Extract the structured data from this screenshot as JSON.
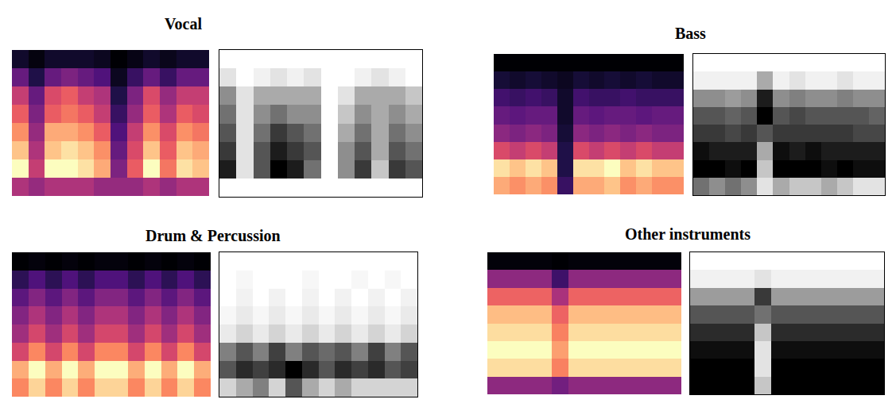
{
  "chart_data": [
    {
      "type": "heatmap",
      "title": "Vocal",
      "tick_labels": false,
      "spectrogram": [
        [
          0.1,
          0.05,
          0.1,
          0.1,
          0.1,
          0.08,
          0.03,
          0.06,
          0.1,
          0.07,
          0.1,
          0.1
        ],
        [
          0.3,
          0.15,
          0.3,
          0.35,
          0.3,
          0.25,
          0.08,
          0.2,
          0.3,
          0.2,
          0.3,
          0.3
        ],
        [
          0.5,
          0.3,
          0.55,
          0.6,
          0.5,
          0.45,
          0.15,
          0.35,
          0.55,
          0.4,
          0.5,
          0.5
        ],
        [
          0.6,
          0.35,
          0.6,
          0.65,
          0.6,
          0.5,
          0.2,
          0.4,
          0.6,
          0.45,
          0.6,
          0.55
        ],
        [
          0.7,
          0.4,
          0.75,
          0.75,
          0.7,
          0.6,
          0.25,
          0.5,
          0.7,
          0.55,
          0.7,
          0.65
        ],
        [
          0.8,
          0.45,
          0.8,
          0.85,
          0.8,
          0.7,
          0.3,
          0.55,
          0.8,
          0.6,
          0.8,
          0.75
        ],
        [
          0.9,
          0.5,
          0.9,
          0.9,
          0.85,
          0.75,
          0.35,
          0.6,
          0.9,
          0.65,
          0.85,
          0.8
        ],
        [
          0.45,
          0.4,
          0.45,
          0.45,
          0.45,
          0.4,
          0.4,
          0.4,
          0.45,
          0.4,
          0.45,
          0.45
        ]
      ],
      "mask": [
        [
          0,
          0,
          0,
          0,
          0,
          0,
          0,
          0,
          0,
          0,
          0,
          0
        ],
        [
          0.1,
          0,
          0.05,
          0.1,
          0.05,
          0.1,
          0,
          0,
          0.05,
          0.1,
          0.05,
          0
        ],
        [
          0.4,
          0.1,
          0.3,
          0.3,
          0.3,
          0.3,
          0,
          0.1,
          0.3,
          0.3,
          0.3,
          0.2
        ],
        [
          0.5,
          0.1,
          0.4,
          0.5,
          0.4,
          0.4,
          0,
          0.2,
          0.4,
          0.3,
          0.4,
          0.3
        ],
        [
          0.6,
          0.1,
          0.5,
          0.7,
          0.6,
          0.5,
          0,
          0.3,
          0.5,
          0.3,
          0.5,
          0.4
        ],
        [
          0.7,
          0.1,
          0.6,
          0.8,
          0.7,
          0.6,
          0,
          0.4,
          0.6,
          0.3,
          0.6,
          0.5
        ],
        [
          0.8,
          0.1,
          0.6,
          0.9,
          0.8,
          0.5,
          0,
          0.4,
          0.7,
          0.2,
          0.7,
          0.6
        ],
        [
          0,
          0,
          0,
          0,
          0,
          0,
          0,
          0,
          0,
          0,
          0,
          0
        ]
      ]
    },
    {
      "type": "heatmap",
      "title": "Bass",
      "tick_labels": false,
      "spectrogram": [
        [
          0.03,
          0.03,
          0.03,
          0.03,
          0.03,
          0.03,
          0.03,
          0.03,
          0.03,
          0.03,
          0.03,
          0.03
        ],
        [
          0.12,
          0.1,
          0.12,
          0.1,
          0.08,
          0.12,
          0.1,
          0.12,
          0.1,
          0.12,
          0.1,
          0.1
        ],
        [
          0.22,
          0.2,
          0.22,
          0.2,
          0.1,
          0.22,
          0.2,
          0.2,
          0.22,
          0.2,
          0.2,
          0.2
        ],
        [
          0.3,
          0.28,
          0.3,
          0.3,
          0.1,
          0.3,
          0.28,
          0.3,
          0.3,
          0.28,
          0.3,
          0.3
        ],
        [
          0.38,
          0.35,
          0.38,
          0.35,
          0.12,
          0.38,
          0.35,
          0.38,
          0.35,
          0.38,
          0.35,
          0.35
        ],
        [
          0.55,
          0.5,
          0.55,
          0.5,
          0.15,
          0.55,
          0.5,
          0.55,
          0.5,
          0.55,
          0.5,
          0.5
        ],
        [
          0.85,
          0.8,
          0.85,
          0.8,
          0.15,
          0.85,
          0.85,
          0.9,
          0.8,
          0.85,
          0.8,
          0.8
        ],
        [
          0.75,
          0.7,
          0.75,
          0.7,
          0.2,
          0.75,
          0.75,
          0.8,
          0.7,
          0.75,
          0.7,
          0.7
        ]
      ],
      "mask": [
        [
          0,
          0,
          0,
          0,
          0,
          0,
          0,
          0,
          0,
          0,
          0,
          0
        ],
        [
          0.05,
          0.05,
          0.05,
          0.05,
          0.3,
          0.05,
          0.1,
          0.05,
          0.05,
          0.1,
          0.05,
          0.05
        ],
        [
          0.4,
          0.4,
          0.35,
          0.4,
          0.8,
          0.4,
          0.45,
          0.4,
          0.4,
          0.45,
          0.4,
          0.4
        ],
        [
          0.6,
          0.6,
          0.55,
          0.6,
          0.9,
          0.6,
          0.65,
          0.6,
          0.6,
          0.6,
          0.6,
          0.55
        ],
        [
          0.7,
          0.7,
          0.65,
          0.7,
          0.6,
          0.7,
          0.7,
          0.7,
          0.7,
          0.7,
          0.65,
          0.65
        ],
        [
          0.85,
          0.8,
          0.8,
          0.8,
          0.3,
          0.85,
          0.8,
          0.85,
          0.8,
          0.8,
          0.8,
          0.8
        ],
        [
          0.9,
          0.9,
          0.85,
          0.9,
          0.2,
          0.9,
          0.9,
          0.9,
          0.85,
          0.9,
          0.85,
          0.85
        ],
        [
          0.5,
          0.4,
          0.5,
          0.4,
          0.1,
          0.3,
          0.2,
          0.2,
          0.3,
          0.2,
          0.1,
          0.1
        ]
      ]
    },
    {
      "type": "heatmap",
      "title": "Drum & Percussion",
      "tick_labels": false,
      "spectrogram": [
        [
          0.05,
          0.06,
          0.05,
          0.06,
          0.05,
          0.06,
          0.06,
          0.05,
          0.06,
          0.05,
          0.06,
          0.05
        ],
        [
          0.15,
          0.2,
          0.15,
          0.2,
          0.15,
          0.2,
          0.2,
          0.15,
          0.2,
          0.15,
          0.2,
          0.15
        ],
        [
          0.22,
          0.28,
          0.22,
          0.28,
          0.22,
          0.28,
          0.28,
          0.22,
          0.28,
          0.22,
          0.28,
          0.22
        ],
        [
          0.28,
          0.34,
          0.28,
          0.34,
          0.28,
          0.34,
          0.34,
          0.28,
          0.34,
          0.28,
          0.34,
          0.28
        ],
        [
          0.32,
          0.4,
          0.32,
          0.4,
          0.32,
          0.4,
          0.4,
          0.32,
          0.4,
          0.32,
          0.4,
          0.32
        ],
        [
          0.4,
          0.5,
          0.4,
          0.5,
          0.4,
          0.5,
          0.5,
          0.4,
          0.5,
          0.4,
          0.5,
          0.4
        ],
        [
          0.55,
          0.65,
          0.55,
          0.65,
          0.55,
          0.65,
          0.65,
          0.55,
          0.65,
          0.55,
          0.65,
          0.55
        ],
        [
          0.5,
          0.6,
          0.5,
          0.6,
          0.5,
          0.6,
          0.6,
          0.5,
          0.6,
          0.5,
          0.6,
          0.5
        ]
      ],
      "mask": [
        [
          0,
          0,
          0,
          0,
          0,
          0,
          0,
          0,
          0,
          0,
          0,
          0
        ],
        [
          0,
          0.02,
          0,
          0,
          0,
          0.02,
          0,
          0,
          0.02,
          0,
          0.02,
          0
        ],
        [
          0,
          0.03,
          0,
          0.03,
          0,
          0.03,
          0,
          0.03,
          0,
          0.03,
          0,
          0.03
        ],
        [
          0.02,
          0.05,
          0.02,
          0.05,
          0.02,
          0.05,
          0.02,
          0.05,
          0.02,
          0.05,
          0.02,
          0.05
        ],
        [
          0.05,
          0.1,
          0.05,
          0.1,
          0.05,
          0.1,
          0.05,
          0.1,
          0.05,
          0.1,
          0.05,
          0.1
        ],
        [
          0.3,
          0.4,
          0.3,
          0.45,
          0.3,
          0.4,
          0.35,
          0.4,
          0.3,
          0.45,
          0.3,
          0.4
        ],
        [
          0.4,
          0.5,
          0.45,
          0.5,
          0.6,
          0.5,
          0.4,
          0.5,
          0.45,
          0.5,
          0.4,
          0.45
        ],
        [
          0.1,
          0.2,
          0.3,
          0.1,
          0.4,
          0.2,
          0.1,
          0.2,
          0.1,
          0.1,
          0.1,
          0.1
        ]
      ]
    },
    {
      "type": "heatmap",
      "title": "Other instruments",
      "tick_labels": false,
      "spectrogram": [
        [
          0.05,
          0.05,
          0.05,
          0.05,
          0.04,
          0.05,
          0.05,
          0.05,
          0.05,
          0.05,
          0.05,
          0.05
        ],
        [
          0.35,
          0.35,
          0.35,
          0.35,
          0.2,
          0.35,
          0.35,
          0.35,
          0.35,
          0.35,
          0.35,
          0.35
        ],
        [
          0.55,
          0.55,
          0.55,
          0.55,
          0.4,
          0.55,
          0.55,
          0.55,
          0.55,
          0.55,
          0.55,
          0.55
        ],
        [
          0.7,
          0.7,
          0.7,
          0.7,
          0.55,
          0.7,
          0.7,
          0.7,
          0.7,
          0.7,
          0.7,
          0.7
        ],
        [
          0.75,
          0.75,
          0.75,
          0.75,
          0.6,
          0.75,
          0.75,
          0.75,
          0.75,
          0.75,
          0.75,
          0.75
        ],
        [
          0.8,
          0.8,
          0.8,
          0.8,
          0.65,
          0.8,
          0.8,
          0.8,
          0.8,
          0.8,
          0.8,
          0.8
        ],
        [
          0.75,
          0.75,
          0.75,
          0.75,
          0.6,
          0.75,
          0.75,
          0.75,
          0.75,
          0.75,
          0.75,
          0.75
        ],
        [
          0.35,
          0.35,
          0.35,
          0.35,
          0.3,
          0.35,
          0.35,
          0.35,
          0.35,
          0.35,
          0.35,
          0.35
        ]
      ],
      "mask": [
        [
          0,
          0,
          0,
          0,
          0,
          0,
          0,
          0,
          0,
          0,
          0,
          0
        ],
        [
          0.05,
          0.05,
          0.05,
          0.05,
          0.1,
          0.05,
          0.05,
          0.05,
          0.05,
          0.05,
          0.05,
          0.05
        ],
        [
          0.35,
          0.35,
          0.35,
          0.35,
          0.7,
          0.35,
          0.35,
          0.35,
          0.35,
          0.35,
          0.35,
          0.35
        ],
        [
          0.6,
          0.6,
          0.6,
          0.6,
          0.5,
          0.6,
          0.6,
          0.6,
          0.6,
          0.6,
          0.6,
          0.6
        ],
        [
          0.75,
          0.75,
          0.75,
          0.75,
          0.2,
          0.75,
          0.75,
          0.75,
          0.75,
          0.75,
          0.75,
          0.75
        ],
        [
          0.85,
          0.85,
          0.85,
          0.85,
          0.1,
          0.85,
          0.85,
          0.85,
          0.85,
          0.85,
          0.85,
          0.85
        ],
        [
          0.9,
          0.9,
          0.9,
          0.9,
          0.1,
          0.9,
          0.9,
          0.9,
          0.9,
          0.9,
          0.9,
          0.9
        ],
        [
          0.9,
          0.9,
          0.9,
          0.9,
          0.2,
          0.9,
          0.9,
          0.9,
          0.9,
          0.9,
          0.9,
          0.9
        ]
      ]
    }
  ]
}
